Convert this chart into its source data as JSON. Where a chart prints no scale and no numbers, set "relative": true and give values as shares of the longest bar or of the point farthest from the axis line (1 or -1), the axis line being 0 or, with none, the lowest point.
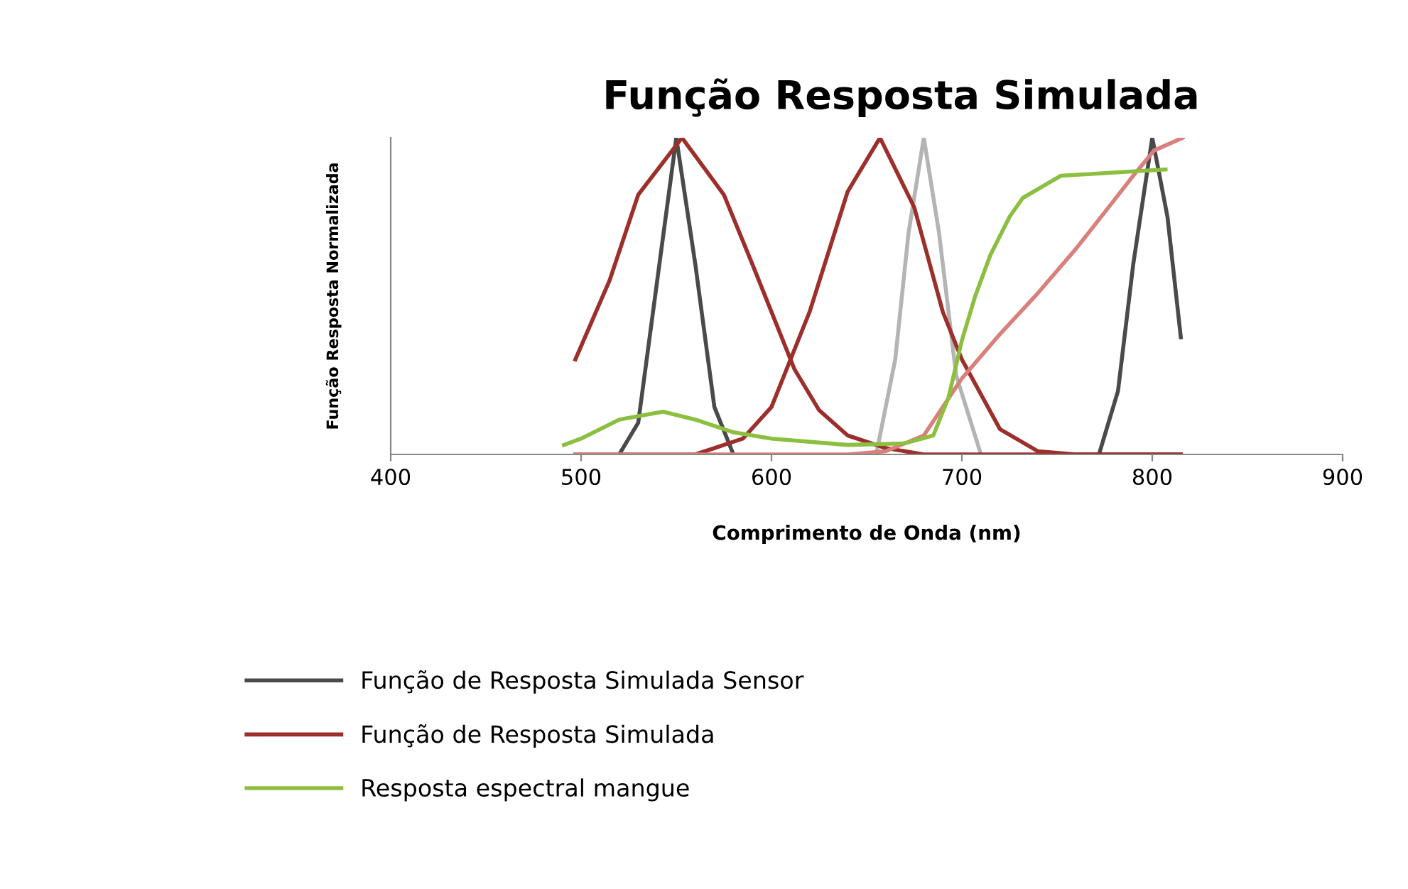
{
  "chart_data": {
    "type": "line",
    "title": "Função Resposta Simulada",
    "xlabel": "Comprimento de Onda (nm)",
    "ylabel": "Função Resposta Normalizada",
    "relative": true,
    "xlim": [
      400,
      900
    ],
    "xticks": [
      400,
      500,
      600,
      700,
      800,
      900
    ],
    "grid": false,
    "legend": "bottom",
    "marker": "none",
    "line_style": "solid",
    "series": [
      {
        "name": "Função de Resposta Simulada Sensor",
        "color": "#4a4a4a",
        "x": [
          520,
          530,
          540,
          550,
          560,
          570,
          580,
          680,
          772,
          782,
          790,
          800,
          808,
          815
        ],
        "values": [
          0,
          0.1,
          0.55,
          1,
          0.6,
          0.15,
          0,
          null,
          0,
          0.2,
          0.6,
          1,
          0.75,
          0.37
        ]
      },
      {
        "color": "#b4b4b4",
        "x": [
          655,
          665,
          672,
          680,
          688,
          697,
          710
        ],
        "values": [
          0,
          0.3,
          0.7,
          1,
          0.7,
          0.25,
          0
        ]
      },
      {
        "name": "Função de Resposta Simulada",
        "color": "#9c2f2b",
        "x": [
          497,
          515,
          530,
          553,
          575,
          590,
          612,
          625,
          640,
          660,
          680,
          815
        ],
        "values": [
          0.3,
          0.55,
          0.82,
          1,
          0.82,
          0.6,
          0.27,
          0.14,
          0.06,
          0.02,
          0,
          0
        ]
      },
      {
        "color": "#9c2f2b",
        "x": [
          497,
          560,
          585,
          600,
          620,
          640,
          657,
          675,
          690,
          700,
          720,
          740,
          760,
          815
        ],
        "values": [
          0,
          0,
          0.05,
          0.15,
          0.45,
          0.83,
          1,
          0.78,
          0.45,
          0.3,
          0.08,
          0.01,
          0,
          0
        ]
      },
      {
        "color": "#d9807c",
        "x": [
          497,
          640,
          660,
          680,
          700,
          720,
          740,
          760,
          777,
          790,
          801,
          816
        ],
        "values": [
          0,
          0,
          0.01,
          0.06,
          0.24,
          0.38,
          0.51,
          0.65,
          0.78,
          0.88,
          0.96,
          1
        ]
      },
      {
        "name": "Resposta espectral mangue",
        "color": "#8cbf3f",
        "x": [
          491,
          500,
          520,
          543,
          560,
          580,
          600,
          640,
          670,
          685,
          693,
          700,
          707,
          715,
          725,
          732,
          752,
          780,
          807
        ],
        "values": [
          0.03,
          0.05,
          0.11,
          0.135,
          0.11,
          0.07,
          0.05,
          0.03,
          0.035,
          0.06,
          0.18,
          0.36,
          0.5,
          0.63,
          0.75,
          0.81,
          0.88,
          0.89,
          0.9
        ]
      }
    ]
  }
}
